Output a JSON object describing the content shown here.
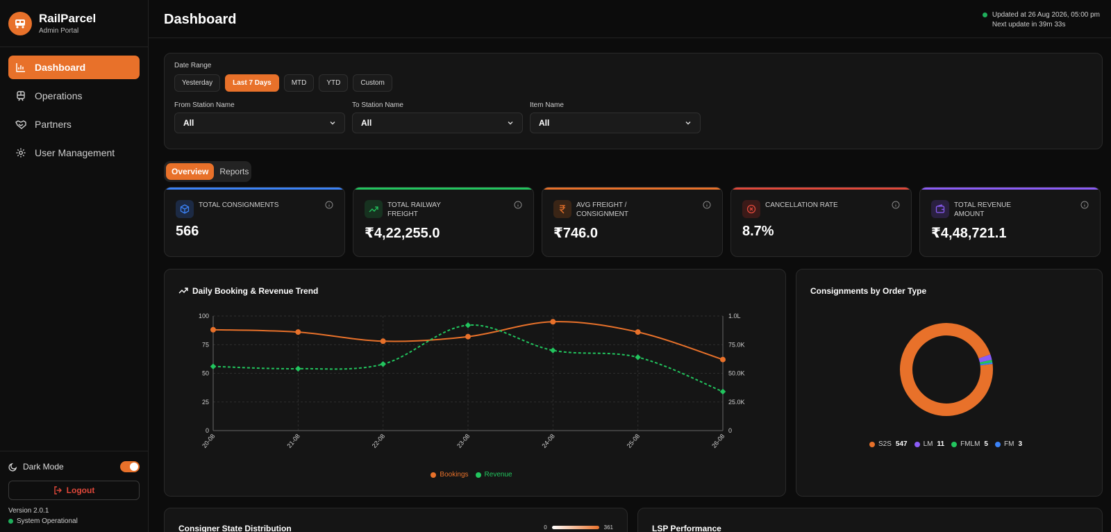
{
  "sidebar": {
    "brand": "RailParcel",
    "subtitle": "Admin Portal",
    "nav": [
      {
        "label": "Dashboard",
        "icon": "bar-chart-icon",
        "active": true
      },
      {
        "label": "Operations",
        "icon": "train-icon",
        "active": false
      },
      {
        "label": "Partners",
        "icon": "handshake-icon",
        "active": false
      },
      {
        "label": "User Management",
        "icon": "gear-icon",
        "active": false
      }
    ],
    "dark_mode_label": "Dark Mode",
    "logout_label": "Logout",
    "version": "Version 2.0.1",
    "system_status": "System Operational"
  },
  "header": {
    "title": "Dashboard",
    "updated": "Updated at 26 Aug 2026, 05:00 pm",
    "next_update": "Next update in 39m 33s"
  },
  "filters": {
    "date_range_label": "Date Range",
    "ranges": [
      "Yesterday",
      "Last 7 Days",
      "MTD",
      "YTD",
      "Custom"
    ],
    "selected_range": "Last 7 Days",
    "from_label": "From Station Name",
    "from_value": "All",
    "to_label": "To Station Name",
    "to_value": "All",
    "item_label": "Item Name",
    "item_value": "All"
  },
  "tabs": [
    "Overview",
    "Reports"
  ],
  "kpis": [
    {
      "title": "TOTAL CONSIGNMENTS",
      "value": "566",
      "color": "#3b82f6",
      "icon": "box-icon"
    },
    {
      "title": "TOTAL RAILWAY FREIGHT",
      "value": "₹4,22,255.0",
      "color": "#22c55e",
      "icon": "trend-up-icon"
    },
    {
      "title": "AVG FREIGHT / CONSIGNMENT",
      "value": "₹746.0",
      "color": "#e8712a",
      "icon": "rupee-icon"
    },
    {
      "title": "CANCELLATION RATE",
      "value": "8.7%",
      "color": "#e0483a",
      "icon": "x-circle-icon"
    },
    {
      "title": "TOTAL REVENUE AMOUNT",
      "value": "₹4,48,721.1",
      "color": "#8b5cf6",
      "icon": "wallet-icon"
    }
  ],
  "trend_title": "Daily Booking & Revenue Trend",
  "order_type_title": "Consignments by Order Type",
  "consignor_title": "Consigner State Distribution",
  "consignor_scale": {
    "min": "0",
    "max": "361"
  },
  "lsp_title": "LSP Performance",
  "chart_data": [
    {
      "type": "line",
      "title": "Daily Booking & Revenue Trend",
      "x": [
        "20-08",
        "21-08",
        "22-08",
        "23-08",
        "24-08",
        "25-08",
        "26-08"
      ],
      "y_left_ticks": [
        "0",
        "25",
        "50",
        "75",
        "100"
      ],
      "y_right_ticks": [
        "0",
        "25.0K",
        "50.0K",
        "75.0K",
        "1.0L"
      ],
      "ylim_left": [
        0,
        100
      ],
      "ylim_right": [
        0,
        100000
      ],
      "grid": true,
      "legend_position": "bottom",
      "series": [
        {
          "name": "Bookings",
          "axis": "left",
          "color": "#e8712a",
          "style": "solid",
          "values": [
            88,
            86,
            78,
            82,
            95,
            86,
            62
          ]
        },
        {
          "name": "Revenue",
          "axis": "right",
          "color": "#22c55e",
          "style": "dashed",
          "values": [
            56000,
            54000,
            58000,
            92000,
            70000,
            64000,
            34000
          ]
        }
      ]
    },
    {
      "type": "pie",
      "title": "Consignments by Order Type",
      "legend_position": "bottom",
      "slices": [
        {
          "label": "S2S",
          "value": 547,
          "color": "#e8712a"
        },
        {
          "label": "LM",
          "value": 11,
          "color": "#8b5cf6"
        },
        {
          "label": "FMLM",
          "value": 5,
          "color": "#22c55e"
        },
        {
          "label": "FM",
          "value": 3,
          "color": "#3b82f6"
        }
      ]
    }
  ]
}
